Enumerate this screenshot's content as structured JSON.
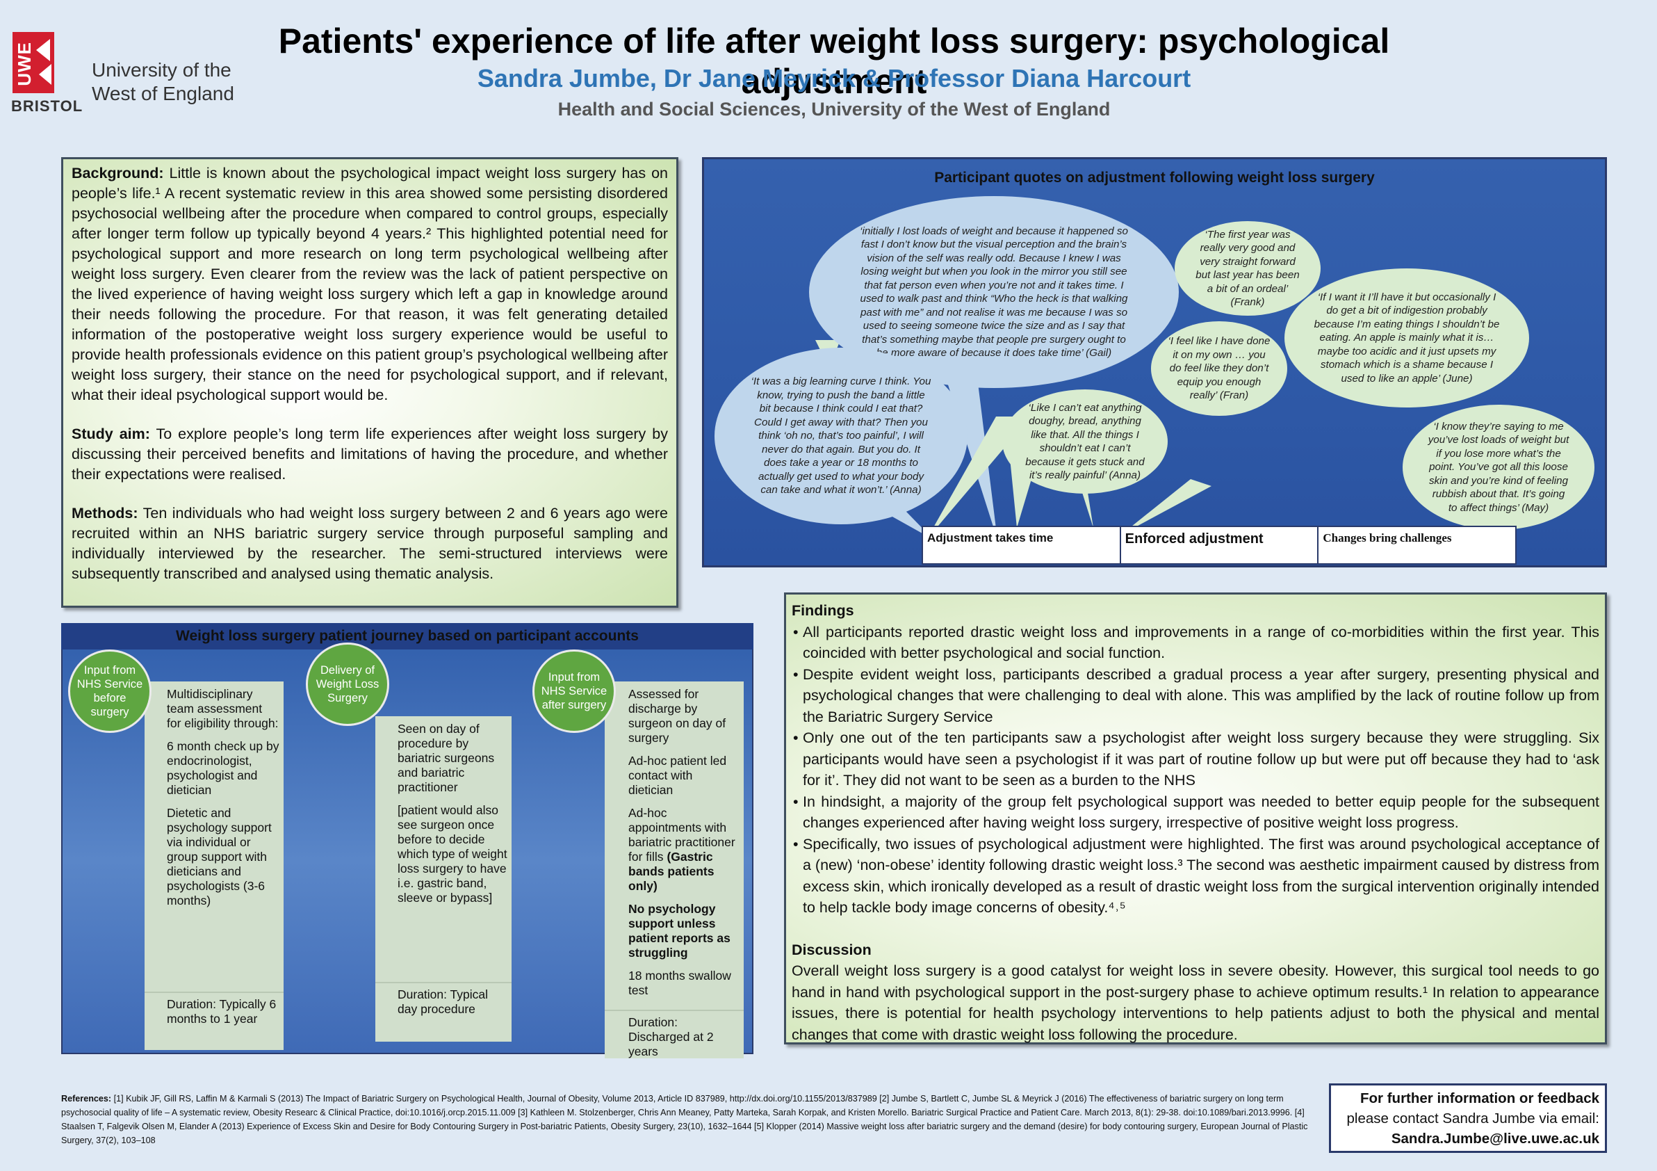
{
  "header": {
    "logo_text": "UWE",
    "logo_bristol": "BRISTOL",
    "logo_uni_line1": "University of the",
    "logo_uni_line2": "West of England",
    "title": "Patients' experience of life after weight loss surgery: psychological adjustment",
    "authors": "Sandra Jumbe, Dr Jane Meyrick & Professor Diana Harcourt",
    "affiliation": "Health and Social Sciences, University of the West of England"
  },
  "background": {
    "bg_label": "Background:",
    "bg_text": " Little is known about the psychological impact weight loss surgery has on people’s life.¹ A recent systematic review in this area showed some persisting disordered psychosocial wellbeing after the procedure when compared to control groups, especially after longer term follow up typically beyond 4 years.² This highlighted potential need for psychological support and more research on long term psychological wellbeing after weight loss surgery. Even clearer from the review was the lack of patient perspective on the lived experience of having weight loss surgery which left a gap in knowledge around their needs following the procedure. For that reason, it was felt generating detailed information of the postoperative weight loss surgery experience would be useful to provide health professionals evidence on this patient group’s psychological wellbeing after weight loss surgery, their stance on the need for psychological support, and if relevant, what their ideal psychological support would be.",
    "aim_label": "Study aim:",
    "aim_text": " To explore people’s long term life experiences after weight loss surgery by discussing their perceived benefits and limitations of having the procedure, and whether their expectations were realised.",
    "methods_label": "Methods:",
    "methods_text": " Ten individuals who had weight loss surgery between 2 and 6 years ago were recruited within an NHS bariatric surgery service through purposeful sampling and individually interviewed by the researcher. The semi-structured interviews were subsequently transcribed and analysed using thematic analysis."
  },
  "quotes": {
    "title": "Participant quotes on adjustment following weight loss surgery",
    "gail": "‘initially I lost loads of weight and because it happened so fast I don’t know but the visual perception and the brain’s vision of the self was really odd. Because I knew I was losing weight but when you look in the mirror you still see that fat person even when you’re not and it takes time. I used to walk past and think “Who the heck is that walking past with me” and not realise it was me because I was so used to seeing someone twice the size and as I say that that’s something maybe that people pre surgery ought to be more aware of because it does take time’ (Gail)",
    "frank": "‘The first year was really very good and very straight forward but last year has been a bit of an ordeal’ (Frank)",
    "june": "‘If I want it I’ll have it but occasionally I do get a bit of indigestion probably because I’m eating things I shouldn’t be eating. An apple is mainly what it is… maybe too acidic and it just upsets my stomach which is a shame because I used to like an apple’ (June)",
    "fran": "‘I feel like I have done it on my own … you do feel like they don’t equip you enough really’ (Fran)",
    "anna_time": "‘It was a big learning curve I think. You know, trying to push the band a little bit because I think could I eat that? Could I get away with that? Then you think ‘oh no, that’s too painful’, I will never do that again. But you do. It does take a year or 18 months to actually get used to what your body can take and what it won’t.’ (Anna)",
    "anna_food": "‘Like I can’t eat anything doughy, bread, anything like that. All the things I shouldn’t eat I can’t because it gets stuck and it’s really painful’ (Anna)",
    "may": "‘I know they’re saying to me you’ve lost loads of weight but if you lose more what’s the point. You’ve got all this loose skin and you’re kind of feeling rubbish about that. It’s going to affect things’ (May)",
    "themes": [
      "Adjustment takes time",
      "Enforced adjustment",
      "Changes bring challenges"
    ]
  },
  "journey": {
    "title": "Weight loss surgery patient journey based on participant accounts",
    "step1_circle": "Input from NHS Service before surgery",
    "step1_p1": "Multidisciplinary team assessment for eligibility through:",
    "step1_p2": "6 month check up by endocrinologist, psychologist and dietician",
    "step1_p3": "Dietetic and psychology support via individual or group support with dieticians and psychologists (3-6 months)",
    "step1_duration": "Duration: Typically 6 months to 1 year",
    "step2_circle": "Delivery of Weight Loss Surgery",
    "step2_p1": "Seen on day of procedure by bariatric surgeons and bariatric practitioner",
    "step2_p2": "[patient would also see surgeon once before to decide which type of weight loss surgery to have i.e. gastric band, sleeve or bypass]",
    "step2_duration": "Duration: Typical day procedure",
    "step3_circle": "Input from NHS Service after surgery",
    "step3_p1": "Assessed for discharge by surgeon on day of surgery",
    "step3_p2": "Ad-hoc patient led contact with dietician",
    "step3_p3": "Ad-hoc appointments with bariatric practitioner for fills",
    "step3_p3b": "(Gastric bands patients only)",
    "step3_p4": "No psychology support unless patient reports as struggling",
    "step3_p5": "18 months swallow test",
    "step3_duration": "Duration: Discharged at 2 years"
  },
  "findings": {
    "heading": "Findings",
    "b1": "All participants reported drastic weight loss and improvements in a range of co-morbidities within the first year. This coincided with better psychological and social function.",
    "b2": "Despite evident weight loss, participants described a gradual process a year after surgery, presenting physical and psychological changes that were challenging to deal with alone. This was amplified by the lack of routine follow up from the Bariatric Surgery Service",
    "b3": "Only one out of the ten participants saw a psychologist after weight loss surgery because they were struggling. Six participants would have seen a psychologist if it was part of routine follow up but were put off because they had to ‘ask for it’. They did not want to be seen as a burden to the NHS",
    "b4": "In hindsight, a majority of the group felt psychological support was needed to better equip people for the subsequent changes experienced after having weight loss surgery, irrespective of positive weight loss progress.",
    "b5": "Specifically, two issues of psychological adjustment were highlighted. The first was around psychological acceptance of a (new) ‘non-obese’ identity following drastic weight loss.³ The second was aesthetic impairment caused by distress from excess skin, which ironically developed as a result of drastic weight loss from the surgical intervention originally intended to help tackle body image concerns of obesity.⁴˒⁵",
    "discussion_heading": "Discussion",
    "discussion": "Overall weight loss surgery is a good catalyst for weight loss in severe obesity. However, this surgical tool needs to go hand in hand with psychological support in the post-surgery phase to achieve optimum results.¹ In relation to appearance issues, there is potential for health psychology interventions to help patients adjust to both the physical and mental changes that come with drastic weight loss following the procedure."
  },
  "references": {
    "label": "References:",
    "text": " [1] Kubik JF, Gill RS, Laffin M & Karmali S (2013) The Impact of Bariatric Surgery on Psychological Health, Journal of Obesity, Volume 2013, Article ID 837989, http://dx.doi.org/10.1155/2013/837989 [2] Jumbe S, Bartlett C, Jumbe SL & Meyrick J (2016) The effectiveness of bariatric surgery on long term psychosocial quality of life – A systematic review, Obesity Researc & Clinical Practice, doi:10.1016/j.orcp.2015.11.009 [3] Kathleen M. Stolzenberger, Chris Ann Meaney, Patty Marteka, Sarah Korpak, and Kristen Morello. Bariatric Surgical Practice and Patient Care. March 2013, 8(1): 29-38. doi:10.1089/bari.2013.9996. [4] Staalsen T, Falgevik Olsen M, Elander A (2013) Experience of Excess Skin and Desire for Body Contouring Surgery in Post-bariatric Patients, Obesity Surgery, 23(10), 1632–1644 [5] Klopper (2014) Massive weight loss after bariatric surgery and the demand (desire) for body contouring surgery, European Journal of Plastic Surgery, 37(2), 103–108"
  },
  "contact": {
    "line1": "For further information or feedback",
    "line2": "please contact Sandra Jumbe via email:",
    "email": "Sandra.Jumbe@live.uwe.ac.uk"
  }
}
